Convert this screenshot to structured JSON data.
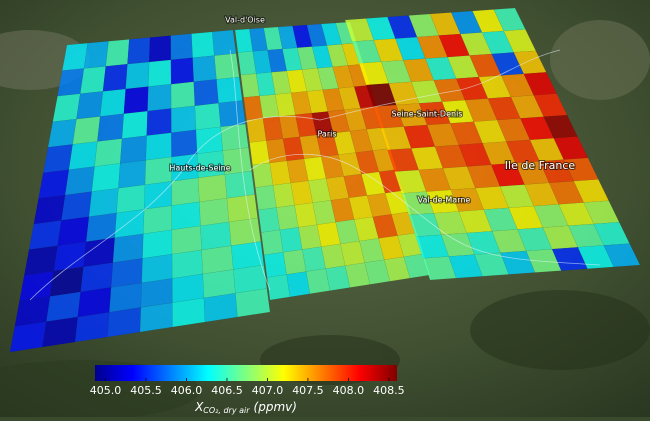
{
  "map": {
    "places": [
      "Val-d'Oise",
      "Hauts-de-Seine",
      "Paris",
      "Seine-Saint-Denis",
      "Ile de France",
      "Val-de-Marne"
    ],
    "colorbar": {
      "lim": [
        404.87,
        408.6
      ],
      "ticks": [
        {
          "value": 405,
          "label": "405.0"
        },
        405.5,
        {
          "value": 406,
          "label": "406.0"
        },
        406.5,
        {
          "value": 407,
          "label": "407.0"
        },
        407.5,
        {
          "value": 408,
          "label": "408.0"
        },
        408.5
      ],
      "label_main": "X",
      "label_sub": "CO₂, dry air",
      "label_unit": "(ppmv)"
    },
    "swaths": [
      {
        "values": [
          [
            406.2,
            406.0,
            406.5,
            405.6,
            405.2,
            405.8,
            406.3,
            406.0
          ],
          [
            405.8,
            406.4,
            405.5,
            406.1,
            406.3,
            405.4,
            406.0,
            406.6
          ],
          [
            406.4,
            405.9,
            406.2,
            405.3,
            406.0,
            406.5,
            405.7,
            406.2
          ],
          [
            406.0,
            406.6,
            405.8,
            406.3,
            405.5,
            406.1,
            406.4,
            405.9
          ],
          [
            405.6,
            406.2,
            406.5,
            405.9,
            406.2,
            405.7,
            406.3,
            406.6
          ],
          [
            405.4,
            405.9,
            406.3,
            406.0,
            406.5,
            406.2,
            406.4,
            406.7
          ],
          [
            405.2,
            405.6,
            406.1,
            406.4,
            406.2,
            406.6,
            406.8,
            406.5
          ],
          [
            405.5,
            405.3,
            405.8,
            406.2,
            406.5,
            406.3,
            406.7,
            406.9
          ],
          [
            405.1,
            405.4,
            405.2,
            405.9,
            406.3,
            406.6,
            406.4,
            406.8
          ],
          [
            405.3,
            405.0,
            405.5,
            405.7,
            406.1,
            406.4,
            406.6,
            406.3
          ],
          [
            405.2,
            405.6,
            405.3,
            405.8,
            405.9,
            406.2,
            406.5,
            406.4
          ],
          [
            405.4,
            405.1,
            405.5,
            405.6,
            406.0,
            406.3,
            406.1,
            406.5
          ]
        ]
      },
      {
        "values": [
          [
            406.3,
            405.9,
            406.5,
            406.0,
            405.4,
            405.8,
            406.2,
            406.6
          ],
          [
            406.5,
            406.1,
            405.8,
            406.4,
            406.7,
            406.2,
            406.9,
            407.3
          ],
          [
            406.8,
            406.4,
            406.9,
            407.2,
            407.0,
            406.8,
            407.5,
            407.6
          ],
          [
            407.7,
            406.9,
            407.1,
            407.5,
            407.3,
            407.6,
            407.4,
            408.3
          ],
          [
            407.4,
            407.8,
            407.6,
            407.9,
            408.4,
            407.7,
            407.5,
            407.8
          ],
          [
            407.2,
            407.6,
            407.9,
            407.5,
            407.8,
            407.3,
            407.6,
            407.4
          ],
          [
            406.9,
            407.3,
            407.5,
            407.2,
            407.6,
            407.4,
            407.8,
            407.5
          ],
          [
            406.7,
            407.0,
            407.3,
            407.0,
            407.4,
            407.7,
            407.2,
            407.9
          ],
          [
            406.5,
            406.8,
            407.1,
            406.9,
            407.6,
            407.3,
            407.5,
            407.2
          ],
          [
            406.6,
            406.4,
            406.9,
            407.2,
            406.8,
            407.1,
            407.8,
            407.4
          ],
          [
            406.3,
            406.7,
            406.5,
            406.9,
            407.0,
            406.8,
            407.3,
            407.0
          ],
          [
            406.4,
            406.2,
            406.6,
            406.5,
            406.8,
            406.7,
            406.9,
            406.6
          ]
        ]
      },
      {
        "values": [
          [
            407.0,
            406.3,
            405.5,
            406.8,
            407.4,
            405.9,
            407.2,
            406.5
          ],
          [
            406.6,
            407.3,
            406.2,
            407.6,
            408.1,
            407.0,
            406.4,
            407.1
          ],
          [
            407.2,
            406.8,
            407.5,
            406.4,
            407.0,
            407.8,
            405.6,
            407.4
          ],
          [
            408.6,
            407.4,
            407.0,
            407.7,
            408.0,
            407.3,
            407.6,
            408.2
          ],
          [
            407.8,
            407.5,
            407.9,
            407.2,
            407.6,
            407.9,
            407.5,
            408.0
          ],
          [
            407.4,
            408.0,
            407.6,
            407.8,
            407.3,
            407.7,
            408.1,
            408.5
          ],
          [
            407.9,
            407.3,
            407.8,
            408.0,
            407.5,
            407.9,
            407.4,
            408.2
          ],
          [
            407.1,
            407.6,
            407.4,
            407.7,
            408.1,
            407.6,
            407.9,
            407.8
          ],
          [
            406.8,
            407.2,
            407.5,
            407.3,
            407.0,
            407.4,
            407.7,
            407.3
          ],
          [
            406.5,
            406.9,
            407.1,
            406.6,
            407.2,
            406.8,
            407.1,
            406.9
          ],
          [
            406.3,
            406.7,
            406.4,
            406.8,
            406.5,
            406.9,
            406.6,
            406.4
          ],
          [
            406.6,
            406.2,
            406.5,
            406.1,
            406.7,
            405.5,
            406.3,
            406.0
          ]
        ]
      }
    ]
  }
}
